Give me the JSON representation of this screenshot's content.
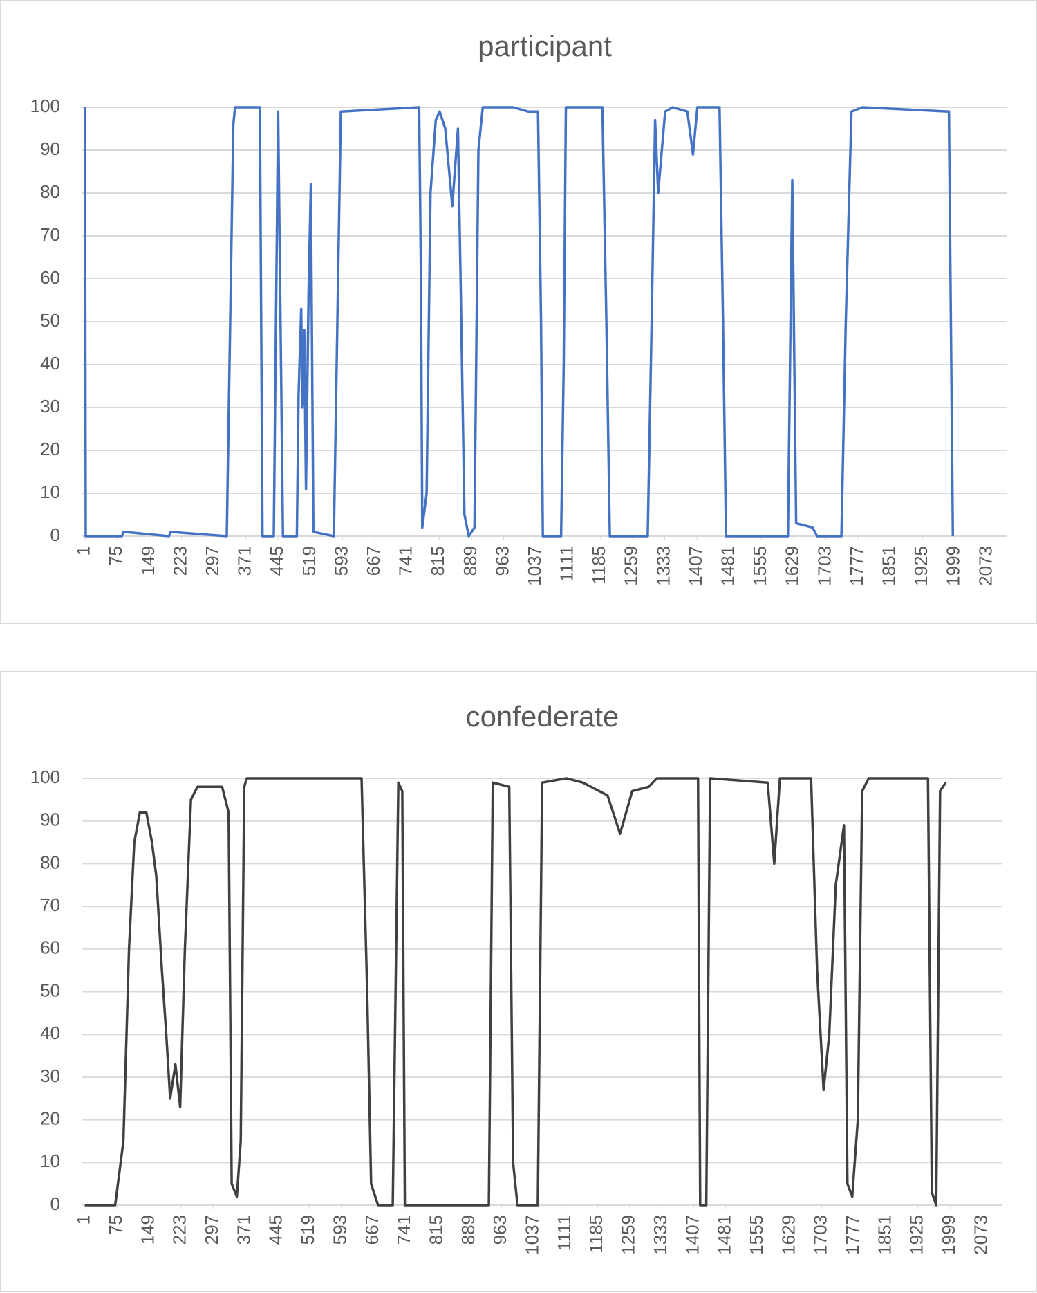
{
  "chart_data": [
    {
      "type": "line",
      "title": "participant",
      "color": "#4472c4",
      "grid": true,
      "xlim": [
        -5,
        2120
      ],
      "ylim": [
        0,
        100
      ],
      "xticks": [
        1,
        75,
        149,
        223,
        297,
        371,
        445,
        519,
        593,
        667,
        741,
        815,
        889,
        963,
        1037,
        1111,
        1185,
        1259,
        1333,
        1407,
        1481,
        1555,
        1629,
        1703,
        1777,
        1851,
        1925,
        1999,
        2073
      ],
      "yticks": [
        0,
        10,
        20,
        30,
        40,
        50,
        60,
        70,
        80,
        90,
        100
      ],
      "x": [
        1,
        3,
        86,
        90,
        194,
        198,
        327,
        342,
        346,
        403,
        409,
        435,
        445,
        456,
        488,
        492,
        498,
        501,
        505,
        509,
        515,
        520,
        526,
        573,
        589,
        769,
        773,
        776,
        786,
        795,
        807,
        816,
        829,
        845,
        858,
        864,
        873,
        883,
        896,
        905,
        915,
        985,
        1019,
        1042,
        1049,
        1053,
        1095,
        1101,
        1106,
        1190,
        1199,
        1207,
        1294,
        1303,
        1311,
        1318,
        1334,
        1351,
        1385,
        1398,
        1408,
        1459,
        1467,
        1474,
        1616,
        1626,
        1635,
        1673,
        1683,
        1739,
        1749,
        1762,
        1787,
        1986,
        1995
      ],
      "values": [
        100,
        0,
        0,
        1,
        0,
        1,
        0,
        96,
        100,
        100,
        0,
        0,
        99,
        0,
        0,
        33,
        53,
        30,
        48,
        11,
        57,
        82,
        1,
        0,
        99,
        100,
        60,
        2,
        10,
        80,
        97,
        99,
        95,
        77,
        95,
        60,
        5,
        0,
        2,
        90,
        100,
        100,
        99,
        99,
        50,
        0,
        0,
        40,
        100,
        100,
        50,
        0,
        0,
        50,
        97,
        80,
        99,
        100,
        99,
        89,
        100,
        100,
        50,
        0,
        0,
        83,
        3,
        2,
        0,
        0,
        50,
        99,
        100,
        99,
        0
      ]
    },
    {
      "type": "line",
      "title": "confederate",
      "color": "#404040",
      "grid": true,
      "xlim": [
        -5,
        2120
      ],
      "ylim": [
        0,
        100
      ],
      "xticks": [
        1,
        75,
        149,
        223,
        297,
        371,
        445,
        519,
        593,
        667,
        741,
        815,
        889,
        963,
        1037,
        1111,
        1185,
        1259,
        1333,
        1407,
        1481,
        1555,
        1629,
        1703,
        1777,
        1851,
        1925,
        1999,
        2073
      ],
      "yticks": [
        0,
        10,
        20,
        30,
        40,
        50,
        60,
        70,
        80,
        90,
        100
      ],
      "x": [
        1,
        71,
        90,
        103,
        115,
        128,
        143,
        156,
        166,
        179,
        189,
        198,
        210,
        221,
        232,
        246,
        261,
        318,
        333,
        340,
        352,
        361,
        369,
        375,
        640,
        653,
        662,
        678,
        712,
        725,
        734,
        740,
        934,
        943,
        981,
        990,
        1000,
        1047,
        1057,
        1113,
        1151,
        1208,
        1237,
        1265,
        1303,
        1322,
        1417,
        1422,
        1436,
        1445,
        1578,
        1593,
        1606,
        1678,
        1692,
        1707,
        1720,
        1735,
        1754,
        1762,
        1773,
        1786,
        1796,
        1811,
        1948,
        1957,
        1967,
        1976,
        1989
      ],
      "values": [
        0,
        0,
        15,
        60,
        85,
        92,
        92,
        85,
        77,
        55,
        40,
        25,
        33,
        23,
        60,
        95,
        98,
        98,
        92,
        5,
        2,
        15,
        98,
        100,
        100,
        50,
        5,
        0,
        0,
        99,
        97,
        0,
        0,
        99,
        98,
        10,
        0,
        0,
        99,
        100,
        99,
        96,
        87,
        97,
        98,
        100,
        100,
        0,
        0,
        100,
        99,
        80,
        100,
        100,
        55,
        27,
        40,
        75,
        89,
        5,
        2,
        20,
        97,
        100,
        100,
        3,
        0,
        97,
        99
      ]
    }
  ]
}
